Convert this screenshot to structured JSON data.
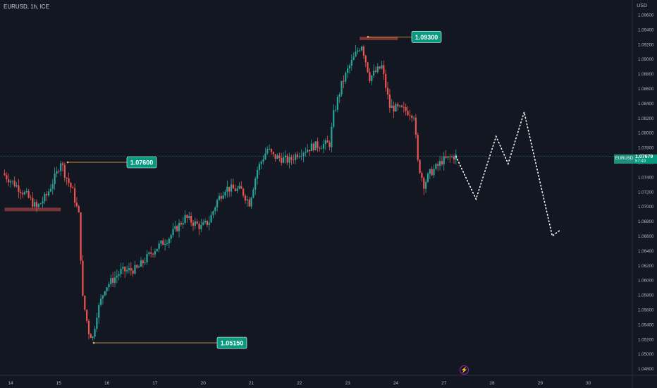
{
  "header": {
    "symbol_line": "EURUSD, 1h, ICE",
    "currency": "USD"
  },
  "price_tag": {
    "symbol": "EURUSD",
    "price": "1.07679",
    "countdown": "57:49",
    "color": "#089981"
  },
  "colors": {
    "background": "#131722",
    "bull": "#26a69a",
    "bear": "#ef5350",
    "annotation_line": "#f0b34b",
    "label_bg": "#089981",
    "zone": "#8b3a3a"
  },
  "annotations": [
    {
      "label": "1.07600",
      "price": 1.076
    },
    {
      "label": "1.09300",
      "price": 1.093
    },
    {
      "label": "1.05150",
      "price": 1.0515
    }
  ],
  "icons": {
    "events": "lightning-icon"
  },
  "chart_data": {
    "type": "candlestick",
    "title": "",
    "xlabel": "",
    "ylabel": "USD",
    "ylim": [
      1.0475,
      1.0975
    ],
    "y_ticks": [
      "1.09600",
      "1.09400",
      "1.09200",
      "1.09000",
      "1.08800",
      "1.08600",
      "1.08400",
      "1.08200",
      "1.08000",
      "1.07800",
      "1.07600",
      "1.07400",
      "1.07200",
      "1.07000",
      "1.06800",
      "1.06600",
      "1.06400",
      "1.06200",
      "1.06000",
      "1.05800",
      "1.05600",
      "1.05400",
      "1.05200",
      "1.05000",
      "1.04800"
    ],
    "x_ticks": [
      "14",
      "15",
      "16",
      "17",
      "20",
      "21",
      "22",
      "23",
      "24",
      "27",
      "28",
      "29",
      "30"
    ],
    "x_tick_values": [
      0,
      24,
      48,
      72,
      96,
      120,
      144,
      168,
      192,
      216,
      240,
      264,
      288
    ],
    "current_price": 1.07679,
    "price_path": [
      [
        -3,
        1.0745
      ],
      [
        4,
        1.0728
      ],
      [
        9,
        1.0715
      ],
      [
        14,
        1.0698
      ],
      [
        19,
        1.0715
      ],
      [
        24,
        1.0745
      ],
      [
        26,
        1.0762
      ],
      [
        28,
        1.0745
      ],
      [
        32,
        1.072
      ],
      [
        35,
        1.0688
      ],
      [
        37,
        1.0575
      ],
      [
        40,
        1.053
      ],
      [
        42,
        1.0522
      ],
      [
        44,
        1.0555
      ],
      [
        48,
        1.059
      ],
      [
        56,
        1.0612
      ],
      [
        64,
        1.0615
      ],
      [
        72,
        1.064
      ],
      [
        80,
        1.0658
      ],
      [
        88,
        1.0685
      ],
      [
        96,
        1.0672
      ],
      [
        100,
        1.068
      ],
      [
        104,
        1.0708
      ],
      [
        108,
        1.0725
      ],
      [
        116,
        1.0722
      ],
      [
        120,
        1.0705
      ],
      [
        124,
        1.075
      ],
      [
        129,
        1.0778
      ],
      [
        132,
        1.0768
      ],
      [
        140,
        1.0762
      ],
      [
        144,
        1.0772
      ],
      [
        152,
        1.0782
      ],
      [
        160,
        1.0785
      ],
      [
        162,
        1.0825
      ],
      [
        166,
        1.0865
      ],
      [
        169,
        1.0885
      ],
      [
        174,
        1.0912
      ],
      [
        176,
        1.092
      ],
      [
        180,
        1.0875
      ],
      [
        186,
        1.089
      ],
      [
        190,
        1.0835
      ],
      [
        198,
        1.083
      ],
      [
        202,
        1.0825
      ],
      [
        204,
        1.076
      ],
      [
        207,
        1.073
      ],
      [
        210,
        1.0745
      ],
      [
        214,
        1.0755
      ],
      [
        216,
        1.0762
      ],
      [
        222,
        1.0768
      ]
    ],
    "forecast_path": [
      [
        222,
        1.0768
      ],
      [
        232,
        1.071
      ],
      [
        242,
        1.0795
      ],
      [
        248,
        1.0758
      ],
      [
        256,
        1.0828
      ],
      [
        270,
        1.066
      ],
      [
        274,
        1.0668
      ]
    ],
    "horizontal_zones": [
      {
        "price": 1.0696,
        "x_from": -3,
        "x_to": 25
      },
      {
        "price": 1.0928,
        "x_from": 174,
        "x_to": 193
      }
    ]
  }
}
